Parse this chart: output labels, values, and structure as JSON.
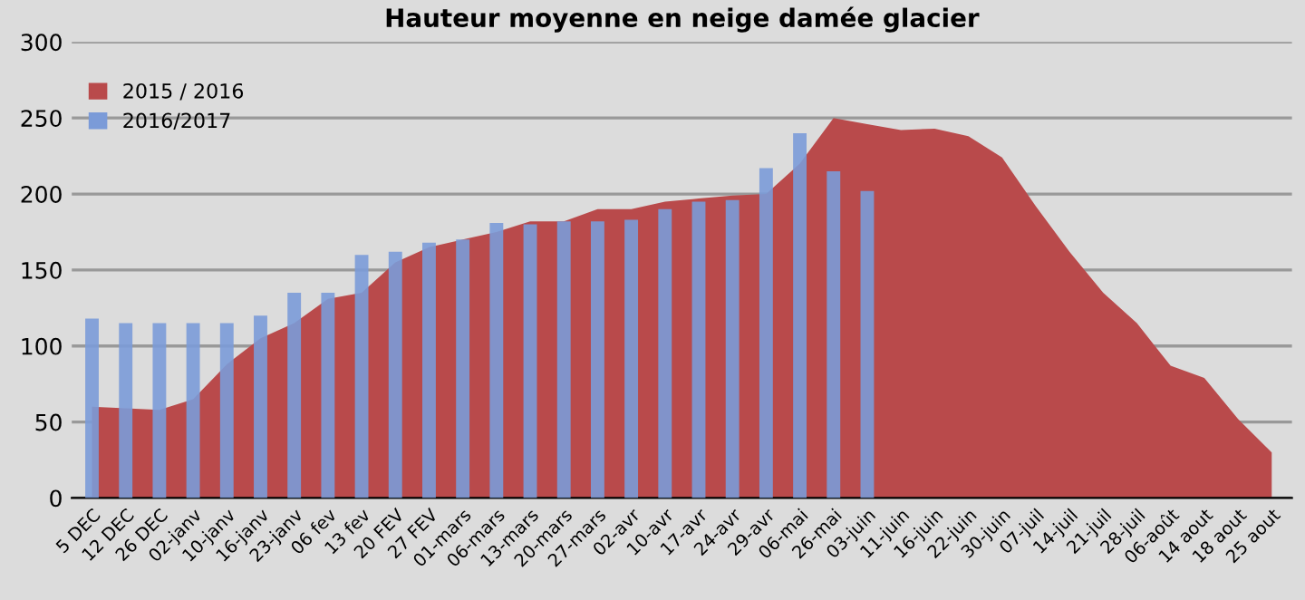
{
  "chart_data": {
    "type": "bar",
    "title": "Hauteur moyenne en neige damée glacier",
    "categories": [
      "5 DEC",
      "12 DEC",
      "26 DEC",
      "02-janv",
      "10-janv",
      "16-janv",
      "23-janv",
      "06 fev",
      "13 fev",
      "20 FEV",
      "27 FEV",
      "01-mars",
      "06-mars",
      "13-mars",
      "20-mars",
      "27-mars",
      "02-avr",
      "10-avr",
      "17-avr",
      "24-avr",
      "29-avr",
      "06-mai",
      "26-mai",
      "03-juin",
      "11-juin",
      "16-juin",
      "22-juin",
      "30-juin",
      "07-juil",
      "14-juil",
      "21-juil",
      "28-juil",
      "06-août",
      "14 aout",
      "18 aout",
      "25 aout"
    ],
    "series": [
      {
        "name": "2015 / 2016",
        "type": "area",
        "color": "#b94a4b",
        "values": [
          60,
          59,
          58,
          65,
          88,
          105,
          115,
          131,
          135,
          155,
          165,
          170,
          175,
          182,
          182,
          190,
          190,
          195,
          197,
          199,
          200,
          220,
          250,
          246,
          242,
          243,
          238,
          224,
          192,
          162,
          135,
          115,
          87,
          79,
          52,
          30
        ]
      },
      {
        "name": "2016/2017",
        "color": "#7b9bd8",
        "values": [
          118,
          115,
          115,
          115,
          115,
          120,
          135,
          135,
          160,
          162,
          168,
          170,
          181,
          180,
          182,
          182,
          183,
          190,
          195,
          196,
          217,
          240,
          215,
          202,
          null,
          null,
          null,
          null,
          null,
          null,
          null,
          null,
          null,
          null,
          null,
          null
        ]
      }
    ],
    "ylim": [
      0,
      300
    ],
    "yticks": [
      0,
      50,
      100,
      150,
      200,
      250,
      300
    ],
    "grid": "y",
    "legend": "top left"
  }
}
